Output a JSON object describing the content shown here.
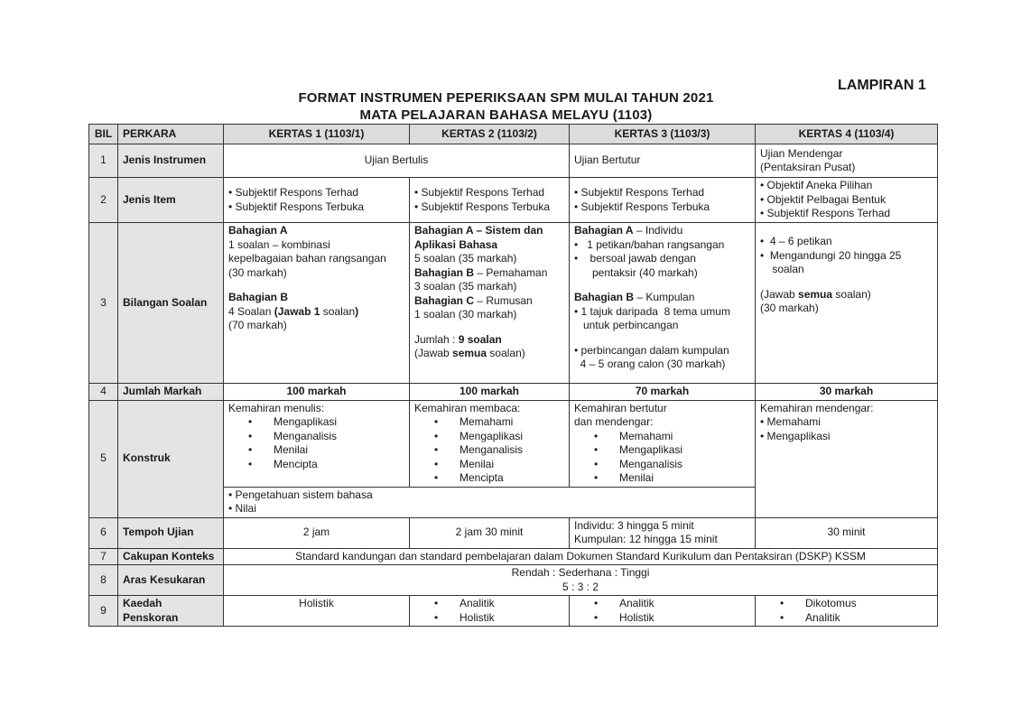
{
  "header": {
    "lampiran": "LAMPIRAN 1",
    "title_line1": "FORMAT INSTRUMEN PEPERIKSAAN SPM MULAI TAHUN 2021",
    "title_line2": "MATA PELAJARAN BAHASA MELAYU (1103)"
  },
  "columns": [
    "BIL",
    "PERKARA",
    "KERTAS 1 (1103/1)",
    "KERTAS 2 (1103/2)",
    "KERTAS 3 (1103/3)",
    "KERTAS 4 (1103/4)"
  ],
  "rows": [
    {
      "bil": "1",
      "perkara": "Jenis Instrumen",
      "height": 37,
      "cells": [
        {
          "colspan": 2,
          "cls": "center",
          "lines": [
            {
              "s": [
                {
                  "t": "Ujian Bertulis"
                }
              ]
            }
          ]
        },
        {
          "cls": "mid",
          "lines": [
            {
              "s": [
                {
                  "t": "Ujian Bertutur"
                }
              ]
            }
          ]
        },
        {
          "cls": "mid",
          "lines": [
            {
              "s": [
                {
                  "t": "Ujian Mendengar"
                }
              ]
            },
            {
              "s": [
                {
                  "t": "(Pentaksiran Pusat)"
                }
              ]
            }
          ]
        }
      ]
    },
    {
      "bil": "2",
      "perkara": "Jenis Item",
      "height": 50,
      "cells": [
        {
          "cls": "mid",
          "lines": [
            {
              "s": [
                {
                  "t": "• Subjektif Respons Terhad"
                }
              ]
            },
            {
              "s": [
                {
                  "t": "• Subjektif Respons Terbuka"
                }
              ]
            }
          ]
        },
        {
          "cls": "mid",
          "lines": [
            {
              "s": [
                {
                  "t": "• Subjektif Respons Terhad"
                }
              ]
            },
            {
              "s": [
                {
                  "t": "• Subjektif Respons Terbuka"
                }
              ]
            }
          ]
        },
        {
          "cls": "mid",
          "lines": [
            {
              "s": [
                {
                  "t": "• Subjektif Respons Terhad"
                }
              ]
            },
            {
              "s": [
                {
                  "t": "• Subjektif Respons Terbuka"
                }
              ]
            }
          ]
        },
        {
          "cls": "mid",
          "lines": [
            {
              "s": [
                {
                  "t": "• Objektif Aneka Pilihan"
                }
              ]
            },
            {
              "s": [
                {
                  "t": "• Objektif Pelbagai Bentuk"
                }
              ]
            },
            {
              "s": [
                {
                  "t": "• Subjektif Respons Terhad"
                }
              ]
            }
          ]
        }
      ]
    },
    {
      "bil": "3",
      "perkara": "Bilangan Soalan",
      "height": 178,
      "cells": [
        {
          "lines": [
            {
              "s": [
                {
                  "t": " Bahagian A",
                  "b": true
                }
              ]
            },
            {
              "s": [
                {
                  "t": "1 soalan – kombinasi"
                }
              ]
            },
            {
              "s": [
                {
                  "t": "kepelbagaian bahan rangsangan"
                }
              ]
            },
            {
              "s": [
                {
                  "t": "(30 markah)"
                }
              ]
            },
            {
              "gap": true
            },
            {
              "s": [
                {
                  "t": "Bahagian B",
                  "b": true
                }
              ]
            },
            {
              "s": [
                {
                  "t": "4 Soalan "
                },
                {
                  "t": "(Jawab 1",
                  "b": true
                },
                {
                  "t": " soalan"
                },
                {
                  "t": ")",
                  "b": true
                }
              ]
            },
            {
              "s": [
                {
                  "t": "(70 markah)"
                }
              ]
            }
          ]
        },
        {
          "lines": [
            {
              "s": [
                {
                  "t": "Bahagian A – Sistem dan",
                  "b": true
                }
              ]
            },
            {
              "s": [
                {
                  "t": "Aplikasi Bahasa",
                  "b": true
                }
              ]
            },
            {
              "s": [
                {
                  "t": " 5 soalan (35 markah)"
                }
              ]
            },
            {
              "s": [
                {
                  "t": " Bahagian B",
                  "b": true
                },
                {
                  "t": " – Pemahaman"
                }
              ]
            },
            {
              "s": [
                {
                  "t": "3 soalan (35 markah)"
                }
              ]
            },
            {
              "s": [
                {
                  "t": " Bahagian C",
                  "b": true
                },
                {
                  "t": " – Rumusan"
                }
              ]
            },
            {
              "s": [
                {
                  "t": "1 soalan (30 markah)"
                }
              ]
            },
            {
              "gap": true
            },
            {
              "s": [
                {
                  "t": "Jumlah : "
                },
                {
                  "t": "9 soalan",
                  "b": true
                }
              ]
            },
            {
              "s": [
                {
                  "t": "(Jawab "
                },
                {
                  "t": "semua",
                  "b": true
                },
                {
                  "t": " soalan)"
                }
              ]
            }
          ]
        },
        {
          "lines": [
            {
              "s": [
                {
                  "t": "Bahagian A",
                  "b": true
                },
                {
                  "t": " – Individu"
                }
              ]
            },
            {
              "s": [
                {
                  "t": "•   1 petikan/bahan rangsangan"
                }
              ]
            },
            {
              "s": [
                {
                  "t": "•    bersoal jawab dengan"
                }
              ]
            },
            {
              "s": [
                {
                  "t": "      pentaksir (40 markah)"
                }
              ]
            },
            {
              "gap": true
            },
            {
              "s": [
                {
                  "t": "Bahagian B",
                  "b": true
                },
                {
                  "t": " – Kumpulan"
                }
              ]
            },
            {
              "s": [
                {
                  "t": "• 1 tajuk daripada  8 tema umum"
                }
              ]
            },
            {
              "s": [
                {
                  "t": "   untuk perbincangan"
                }
              ]
            },
            {
              "gap": true
            },
            {
              "s": [
                {
                  "t": "• perbincangan dalam kumpulan"
                }
              ]
            },
            {
              "s": [
                {
                  "t": "  4 – 5 orang calon (30 markah)"
                }
              ]
            }
          ]
        },
        {
          "lines": [
            {
              "gap": true
            },
            {
              "s": [
                {
                  "t": "•  4 – 6 petikan"
                }
              ]
            },
            {
              "s": [
                {
                  "t": "•  Mengandungi 20 hingga 25"
                }
              ]
            },
            {
              "s": [
                {
                  "t": "    soalan"
                }
              ]
            },
            {
              "gap": true
            },
            {
              "s": [
                {
                  "t": "(Jawab "
                },
                {
                  "t": "semua",
                  "b": true
                },
                {
                  "t": " soalan)"
                }
              ]
            },
            {
              "s": [
                {
                  "t": "(30 markah)"
                }
              ]
            }
          ]
        }
      ]
    },
    {
      "bil": "4",
      "perkara": "Jumlah Markah",
      "height": 18,
      "cells": [
        {
          "cls": "center",
          "lines": [
            {
              "s": [
                {
                  "t": "100 markah",
                  "b": true
                }
              ]
            }
          ]
        },
        {
          "cls": "center",
          "lines": [
            {
              "s": [
                {
                  "t": "100 markah",
                  "b": true
                }
              ]
            }
          ]
        },
        {
          "cls": "center",
          "lines": [
            {
              "s": [
                {
                  "t": "70 markah",
                  "b": true
                }
              ]
            }
          ]
        },
        {
          "cls": "center",
          "lines": [
            {
              "s": [
                {
                  "t": "30 markah",
                  "b": true
                }
              ]
            }
          ]
        }
      ]
    }
  ],
  "konstruk": {
    "bil": "5",
    "perkara": "Konstruk",
    "kertas1": {
      "heading": "Kemahiran menulis:",
      "items": [
        "Mengaplikasi",
        "Menganalisis",
        "Menilai",
        "Mencipta"
      ]
    },
    "kertas2": {
      "heading": "Kemahiran membaca:",
      "items": [
        "Memahami",
        "Mengaplikasi",
        "Menganalisis",
        "Menilai",
        "Mencipta"
      ]
    },
    "kertas3": {
      "heading": " Kemahiran bertutur",
      "heading2": "dan mendengar:",
      "items": [
        "Memahami",
        "Mengaplikasi",
        "Menganalisis",
        "Menilai"
      ]
    },
    "kertas4": {
      "heading": "Kemahiran mendengar:",
      "items": [
        "• Memahami",
        "• Mengaplikasi"
      ]
    },
    "shared": [
      "• Pengetahuan sistem bahasa",
      "• Nilai"
    ]
  },
  "rows_after": [
    {
      "bil": "6",
      "perkara": "Tempoh Ujian",
      "height": 28,
      "cells": [
        {
          "cls": "center",
          "lines": [
            {
              "s": [
                {
                  "t": "2 jam"
                }
              ]
            }
          ]
        },
        {
          "cls": "center",
          "lines": [
            {
              "s": [
                {
                  "t": "2 jam 30 minit"
                }
              ]
            }
          ]
        },
        {
          "cls": "mid",
          "lines": [
            {
              "s": [
                {
                  "t": "Individu: 3 hingga 5 minit"
                }
              ]
            },
            {
              "s": [
                {
                  "t": "Kumpulan: 12 hingga 15 minit"
                }
              ]
            }
          ]
        },
        {
          "cls": "center",
          "lines": [
            {
              "s": [
                {
                  "t": "30 minit"
                }
              ]
            }
          ]
        }
      ]
    },
    {
      "bil": "7",
      "perkara": "Cakupan Konteks",
      "height": 17,
      "cells": [
        {
          "colspan": 4,
          "cls": "center",
          "lines": [
            {
              "s": [
                {
                  "t": "Standard kandungan dan standard pembelajaran dalam Dokumen Standard Kurikulum dan Pentaksiran (DSKP) KSSM"
                }
              ]
            }
          ]
        }
      ]
    },
    {
      "bil": "8",
      "perkara": "Aras Kesukaran",
      "height": 31,
      "cells": [
        {
          "colspan": 4,
          "cls": "center",
          "lines": [
            {
              "s": [
                {
                  "t": "Rendah : Sederhana : Tinggi"
                }
              ]
            },
            {
              "s": [
                {
                  "t": "5 : 3 : 2"
                }
              ]
            }
          ]
        }
      ]
    },
    {
      "bil": "9",
      "perkara": "Kaedah Penskoran",
      "height": 31,
      "cells": [
        {
          "cls": "center",
          "lines": [
            {
              "s": [
                {
                  "t": "Holistik"
                }
              ]
            }
          ],
          "top": true
        },
        {
          "bullets": [
            "Analitik",
            "Holistik"
          ]
        },
        {
          "bullets": [
            "Analitik",
            "Holistik"
          ]
        },
        {
          "bullets": [
            "Dikotomus",
            "Analitik"
          ]
        }
      ]
    }
  ]
}
